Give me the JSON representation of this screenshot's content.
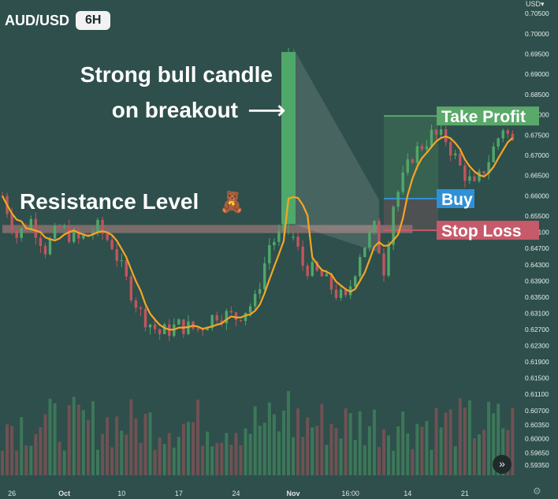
{
  "header": {
    "symbol": "AUD/USD",
    "timeframe": "6H",
    "currency": "USD"
  },
  "colors": {
    "background": "#2e4f4b",
    "up": "#4fa86a",
    "down": "#c2555f",
    "ma": "#f5a623",
    "take_profit": "#5aa86a",
    "buy": "#2f8fd8",
    "stop_loss": "#c65a6a",
    "resistance_band": "#b98585"
  },
  "chart_data": {
    "type": "candlestick",
    "title": "AUD/USD 6H",
    "ylim": [
      0.591,
      0.706
    ],
    "y_ticks": [
      "0.70500",
      "0.70000",
      "0.69500",
      "0.69000",
      "0.68500",
      "0.68000",
      "0.67500",
      "0.67000",
      "0.66500",
      "0.66000",
      "0.65500",
      "0.65100",
      "0.64700",
      "0.64300",
      "0.63900",
      "0.63500",
      "0.63100",
      "0.62700",
      "0.62300",
      "0.61900",
      "0.61500",
      "0.61100",
      "0.60700",
      "0.60350",
      "0.60000",
      "0.59650",
      "0.59350"
    ],
    "x_ticks": [
      {
        "label": "26",
        "index": 2
      },
      {
        "label": "Oct",
        "index": 13
      },
      {
        "label": "10",
        "index": 25
      },
      {
        "label": "17",
        "index": 37
      },
      {
        "label": "24",
        "index": 49
      },
      {
        "label": "Nov",
        "index": 61
      },
      {
        "label": "16:00",
        "index": 73
      },
      {
        "label": "14",
        "index": 85
      },
      {
        "label": "21",
        "index": 97
      }
    ],
    "candle_count": 108,
    "key_candle_index": 60,
    "key_candle": {
      "open": 0.653,
      "close": 0.6955,
      "high": 0.6965,
      "low": 0.6505
    },
    "resistance_level": {
      "label": "Resistance Level",
      "low": 0.6508,
      "high": 0.6528,
      "start_index": 0,
      "end_index": 86
    },
    "trade": {
      "start_index": 80,
      "take_profit": {
        "label": "Take Profit",
        "value": 0.6797
      },
      "buy": {
        "label": "Buy",
        "value": 0.6593
      },
      "stop_loss": {
        "label": "Stop Loss",
        "value": 0.6515
      }
    },
    "annotations": {
      "bull_candle_line1": "Strong bull candle",
      "bull_candle_line2": "on breakout",
      "arrow": "⟶",
      "resistance_emoji": "🧸"
    },
    "overlays": [
      "moving-average"
    ],
    "volume_panel": true
  }
}
